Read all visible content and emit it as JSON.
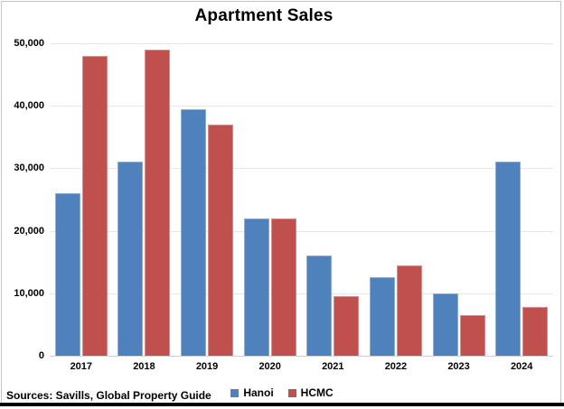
{
  "chart_data": {
    "type": "bar",
    "title": "Apartment Sales",
    "categories": [
      "2017",
      "2018",
      "2019",
      "2020",
      "2021",
      "2022",
      "2023",
      "2024"
    ],
    "series": [
      {
        "name": "Hanoi",
        "color": "#4F81BD",
        "values": [
          26000,
          31000,
          39500,
          22000,
          16000,
          12500,
          10000,
          31000
        ]
      },
      {
        "name": "HCMC",
        "color": "#C0504D",
        "values": [
          48000,
          49000,
          37000,
          22000,
          9500,
          14500,
          6500,
          7800
        ]
      }
    ],
    "xlabel": "",
    "ylabel": "",
    "ylim": [
      0,
      50000
    ],
    "ytick_interval": 10000,
    "ytick_labels": [
      "0",
      "10,000",
      "20,000",
      "30,000",
      "40,000",
      "50,000"
    ],
    "grid": true,
    "legend_position": "bottom"
  },
  "footer": {
    "sources": "Sources: Savills, Global Property Guide"
  },
  "ui_colors": {
    "background": "#FFFFFF",
    "gridline": "#E6E6E6",
    "axis_line": "#CFCFCF",
    "chart_border": "#C4C4C4",
    "bottom_bar": "#000000",
    "text": "#000000"
  }
}
